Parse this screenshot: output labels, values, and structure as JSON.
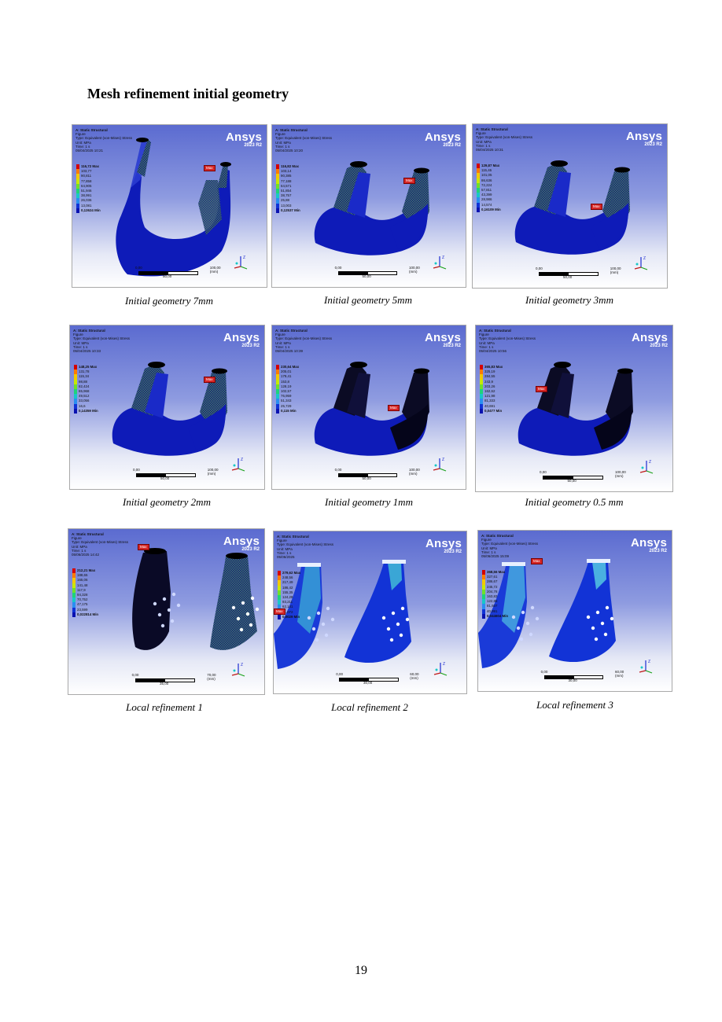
{
  "heading": "Mesh refinement initial geometry",
  "page_number": "19",
  "common": {
    "analysis": "A: Static Structural",
    "figure": "Figure",
    "type": "Type: Equivalent (von-Mises) Stress",
    "unit": "Unit: MPa",
    "time": "Time: 1 s",
    "brand": "Ansys",
    "version": "2023 R2",
    "max_tag": "Max",
    "scale_unit": "(mm)",
    "colors": [
      "#d40000",
      "#ff7a00",
      "#f2c800",
      "#c8e800",
      "#6fe02a",
      "#1fd37a",
      "#18c7c7",
      "#2a8ff0",
      "#1033d6",
      "#0a12b0"
    ]
  },
  "figures": [
    {
      "caption": "Initial geometry 7mm",
      "date": "05/04/2025 10:21",
      "legend": [
        "116,72 Max",
        "103,77",
        "90,811",
        "77,858",
        "64,905",
        "51,946",
        "38,991",
        "26,036",
        "13,081",
        "0,12624 Min"
      ],
      "scale": {
        "start": "0,00",
        "mid": "50,00",
        "end": "100,00"
      }
    },
    {
      "caption": "Initial geometry 5mm",
      "date": "05/04/2025 10:20",
      "legend": [
        "116,82 Max",
        "103,14",
        "90,385",
        "77,188",
        "64,571",
        "51,854",
        "38,757",
        "25,88",
        "13,003",
        "0,12537 Min"
      ],
      "scale": {
        "start": "0,00",
        "mid": "50,00",
        "end": "100,00"
      }
    },
    {
      "caption": "Initial geometry 3mm",
      "date": "05/04/2025 10:31",
      "legend": [
        "129,87 Max",
        "115,46",
        "101,05",
        "86,636",
        "72,224",
        "57,811",
        "43,399",
        "28,986",
        "14,574",
        "0,16109 Min"
      ],
      "scale": {
        "start": "0,00",
        "mid": "50,00",
        "end": "100,00"
      }
    },
    {
      "caption": "Initial geometry 2mm",
      "date": "05/04/2025 10:33",
      "legend": [
        "148,25 Max",
        "131,78",
        "115,34",
        "98,88",
        "82,424",
        "65,968",
        "49,512",
        "33,056",
        "16,6",
        "0,14359 Min"
      ],
      "scale": {
        "start": "0,00",
        "mid": "50,00",
        "end": "100,00"
      }
    },
    {
      "caption": "Initial geometry 1mm",
      "date": "05/04/2025 10:39",
      "legend": [
        "230,64 Max",
        "205,01",
        "179,41",
        "153,8",
        "128,19",
        "102,57",
        "76,959",
        "51,343",
        "25,729",
        "0,115 Min"
      ],
      "scale": {
        "start": "0,00",
        "mid": "50,00",
        "end": "100,00"
      }
    },
    {
      "caption": "Initial geometry 0.5 mm",
      "date": "05/04/2025 10:56",
      "legend": [
        "365,83 Max",
        "325,19",
        "284,55",
        "243,9",
        "203,26",
        "162,62",
        "121,98",
        "81,333",
        "40,691",
        "0,0477 Min"
      ],
      "scale": {
        "start": "0,00",
        "mid": "50,00",
        "end": "100,00"
      }
    },
    {
      "caption": "Local refinement 1",
      "date": "05/06/2025 14:42",
      "legend": [
        "212,21 Max",
        "188,65",
        "165,06",
        "141,48",
        "117,9",
        "94,328",
        "70,752",
        "47,175",
        "23,599",
        "0,022814 Min"
      ],
      "scale": {
        "start": "0,00",
        "mid": "35,00",
        "end": "70,00"
      }
    },
    {
      "caption": "Local refinement 2",
      "date": "05/06/2025",
      "legend": [
        "279,62 Max",
        "248,56",
        "217,49",
        "186,42",
        "155,35",
        "124,28",
        "93,211",
        "62,141",
        "31,072",
        "0,0029 Min"
      ],
      "scale": {
        "start": "0,00",
        "mid": "30,00",
        "end": "60,00"
      }
    },
    {
      "caption": "Local refinement 3",
      "date": "05/06/2025 15:09",
      "legend": [
        "368,56 Max",
        "327,61",
        "286,67",
        "245,72",
        "204,78",
        "163,83",
        "122,88",
        "81,937",
        "40,991",
        "0,044604 Min"
      ],
      "scale": {
        "start": "0,00",
        "mid": "30,00",
        "end": "60,00"
      }
    }
  ]
}
